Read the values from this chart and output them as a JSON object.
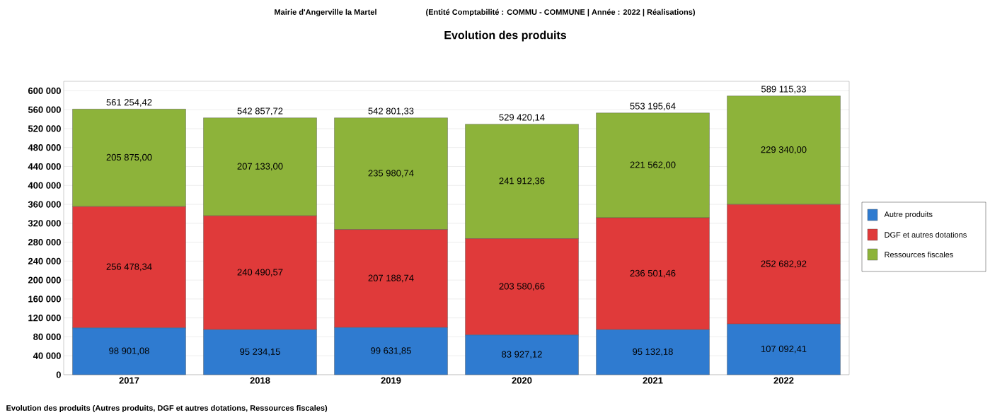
{
  "chart_data": {
    "type": "bar",
    "stacked": true,
    "title": "Evolution des produits",
    "subtitle": "Mairie d'Angerville la Martel",
    "annotations": [
      "(Entité Comptabilité : COMMU - COMMUNE | Année : 2022 | Réalisations)",
      "Evolution des produits (Autres produits, DGF et autres dotations, Ressources fiscales)"
    ],
    "categories": [
      "2017",
      "2018",
      "2019",
      "2020",
      "2021",
      "2022"
    ],
    "series": [
      {
        "name": "Autre produits",
        "color": "#2f7bd0",
        "values": [
          98901.08,
          95234.15,
          99631.85,
          83927.12,
          95132.18,
          107092.41
        ],
        "value_labels": [
          "98 901,08",
          "95 234,15",
          "99 631,85",
          "83 927,12",
          "95 132,18",
          "107 092,41"
        ]
      },
      {
        "name": "DGF et autres dotations",
        "color": "#e03a3a",
        "values": [
          256478.34,
          240490.57,
          207188.74,
          203580.66,
          236501.46,
          252682.92
        ],
        "value_labels": [
          "256 478,34",
          "240 490,57",
          "207 188,74",
          "203 580,66",
          "236 501,46",
          "252 682,92"
        ]
      },
      {
        "name": "Ressources fiscales",
        "color": "#8db33a",
        "values": [
          205875.0,
          207133.0,
          235980.74,
          241912.36,
          221562.0,
          229340.0
        ],
        "value_labels": [
          "205 875,00",
          "207 133,00",
          "235 980,74",
          "241 912,36",
          "221 562,00",
          "229 340,00"
        ]
      }
    ],
    "totals": [
      "561 254,42",
      "542 857,72",
      "542 801,33",
      "529 420,14",
      "553 195,64",
      "589 115,33"
    ],
    "ylim": [
      0,
      620000
    ],
    "yticks": [
      {
        "value": 0,
        "label": "0"
      },
      {
        "value": 40000,
        "label": "40 000"
      },
      {
        "value": 80000,
        "label": "80 000"
      },
      {
        "value": 120000,
        "label": "120 000"
      },
      {
        "value": 160000,
        "label": "160 000"
      },
      {
        "value": 200000,
        "label": "200 000"
      },
      {
        "value": 240000,
        "label": "240 000"
      },
      {
        "value": 280000,
        "label": "280 000"
      },
      {
        "value": 320000,
        "label": "320 000"
      },
      {
        "value": 360000,
        "label": "360 000"
      },
      {
        "value": 400000,
        "label": "400 000"
      },
      {
        "value": 440000,
        "label": "440 000"
      },
      {
        "value": 480000,
        "label": "480 000"
      },
      {
        "value": 520000,
        "label": "520 000"
      },
      {
        "value": 560000,
        "label": "560 000"
      },
      {
        "value": 600000,
        "label": "600 000"
      }
    ],
    "grid": "y",
    "legend": "right"
  }
}
